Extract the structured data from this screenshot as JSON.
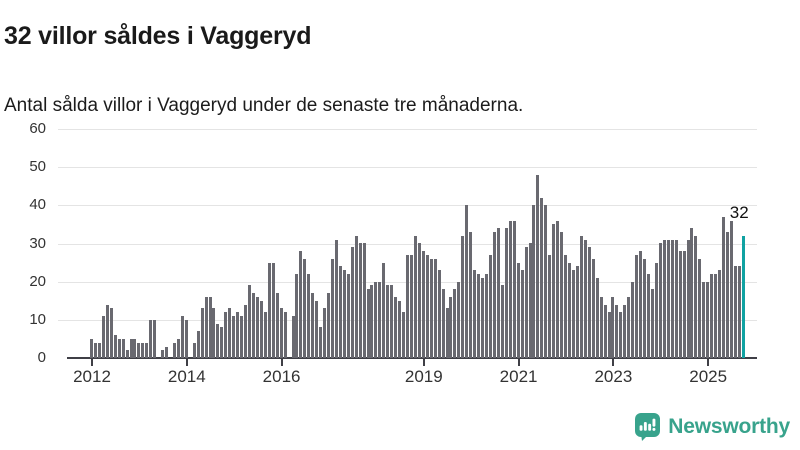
{
  "header": {
    "title": "32 villor såldes i Vaggeryd",
    "subtitle": "Antal sålda villor i Vaggeryd under de senaste tre månaderna."
  },
  "chart_data": {
    "type": "bar",
    "title": "32 villor såldes i Vaggeryd",
    "subtitle": "Antal sålda villor i Vaggeryd under de senaste tre månaderna.",
    "x_range": [
      "2012-01",
      "2025-10"
    ],
    "x_frequency": "monthly",
    "values": [
      5,
      4,
      4,
      11,
      14,
      13,
      6,
      5,
      5,
      2,
      5,
      5,
      4,
      4,
      4,
      10,
      10,
      0,
      2,
      3,
      0,
      4,
      5,
      11,
      10,
      0,
      4,
      7,
      13,
      16,
      16,
      13,
      9,
      8,
      12,
      13,
      11,
      12,
      11,
      14,
      19,
      17,
      16,
      15,
      12,
      25,
      25,
      17,
      13,
      12,
      0,
      11,
      22,
      28,
      26,
      22,
      17,
      15,
      8,
      13,
      17,
      26,
      31,
      24,
      23,
      22,
      29,
      32,
      30,
      30,
      18,
      19,
      20,
      20,
      25,
      19,
      19,
      16,
      15,
      12,
      27,
      27,
      32,
      30,
      28,
      27,
      26,
      26,
      23,
      18,
      13,
      16,
      18,
      20,
      32,
      40,
      33,
      23,
      22,
      21,
      22,
      27,
      33,
      34,
      19,
      34,
      36,
      36,
      25,
      23,
      29,
      30,
      40,
      48,
      42,
      40,
      27,
      35,
      36,
      33,
      27,
      25,
      23,
      24,
      32,
      31,
      29,
      26,
      21,
      16,
      14,
      12,
      16,
      14,
      12,
      14,
      16,
      20,
      27,
      28,
      26,
      22,
      18,
      25,
      30,
      31,
      31,
      31,
      31,
      28,
      28,
      31,
      34,
      32,
      26,
      20,
      20,
      22,
      22,
      23,
      37,
      33,
      36,
      24,
      24,
      32
    ],
    "ylim": [
      0,
      60
    ],
    "yticks": [
      0,
      10,
      20,
      30,
      40,
      50,
      60
    ],
    "xtick_years": [
      2012,
      2014,
      2016,
      2019,
      2021,
      2023,
      2025
    ],
    "grid": true,
    "legend": false,
    "xlabel": "",
    "ylabel": "",
    "bar_color": "#696970",
    "highlight_index": 165,
    "highlight_value_label": "32",
    "highlight_color": "#10a2a2"
  },
  "footer": {
    "brand": "Newsworthy",
    "brand_color": "#38a38c"
  }
}
